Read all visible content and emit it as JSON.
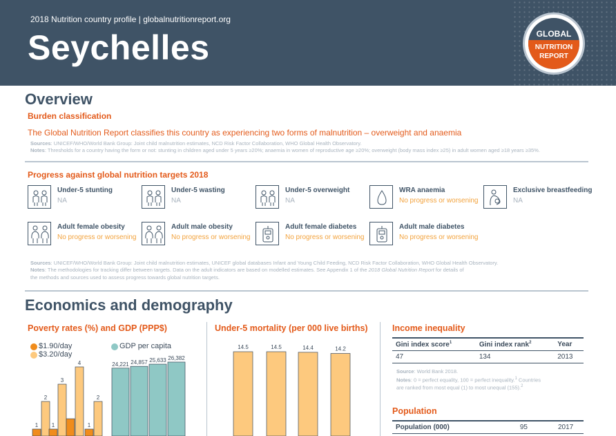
{
  "header": {
    "profile_line": "2018 Nutrition country profile  |  globalnutritionreport.org",
    "country": "Seychelles",
    "logo": {
      "line1": "GLOBAL",
      "line2": "NUTRITION",
      "line3": "REPORT"
    }
  },
  "overview": {
    "title": "Overview",
    "burden_title": "Burden classification",
    "burden_text": "The Global Nutrition Report classifies this country as experiencing two forms of malnutrition – overweight and anaemia",
    "sources_label": "Sources",
    "sources_text": ": UNICEF/WHO/World Bank Group: Joint child malnutrition estimates, NCD Risk Factor Collaboration, WHO Global Health Observatory.",
    "notes_label": "Notes",
    "notes_text": ": Thresholds for a country having the form or not: stunting in children aged under 5 years ≥20%; anaemia in women of reproductive age ≥20%; overweight (body mass index ≥25) in adult women aged ≥18 years ≥35%."
  },
  "progress": {
    "title": "Progress against global nutrition targets 2018",
    "targets": [
      {
        "name": "Under-5 stunting",
        "status": "NA",
        "icon": "children-icon"
      },
      {
        "name": "Under-5 wasting",
        "status": "NA",
        "icon": "children-icon"
      },
      {
        "name": "Under-5 overweight",
        "status": "NA",
        "icon": "children-icon"
      },
      {
        "name": "WRA anaemia",
        "status": "No progress or worsening",
        "icon": "blood-drop-icon"
      },
      {
        "name": "Exclusive breastfeeding",
        "status": "NA",
        "icon": "breastfeeding-icon"
      },
      {
        "name": "Adult female obesity",
        "status": "No progress or worsening",
        "icon": "adults-icon"
      },
      {
        "name": "Adult male obesity",
        "status": "No progress or worsening",
        "icon": "adults-icon"
      },
      {
        "name": "Adult female diabetes",
        "status": "No progress or worsening",
        "icon": "glucose-meter-icon"
      },
      {
        "name": "Adult male diabetes",
        "status": "No progress or worsening",
        "icon": "glucose-meter-icon"
      }
    ],
    "sources_label": "Sources",
    "sources_text": ": UNICEF/WHO/World Bank Group: Joint child malnutrition estimates, UNICEF global databases Infant and Young Child Feeding, NCD Risk Factor Collaboration, WHO Global Health Observatory.",
    "notes_label": "Notes",
    "notes_text_1": ": The methodologies for tracking differ between targets. Data on the adult indicators are based on modelled estimates. See Appendix 1 of the ",
    "notes_italic": "2018 Global Nutrition Report",
    "notes_text_2": " for details of",
    "notes_text_3": "the methods and sources used to assess progress towards global nutrition targets."
  },
  "economics": {
    "title": "Economics and demography",
    "poverty_title": "Poverty rates (%) and GDP (PPP$)",
    "mortality_title": "Under-5 mortality (per 000 live births)",
    "income_title": "Income inequality",
    "income_table": {
      "headers": [
        "Gini index score",
        "Gini index rank",
        "Year"
      ],
      "header_sups": [
        "1",
        "2",
        ""
      ],
      "row": [
        "47",
        "134",
        "2013"
      ]
    },
    "income_source_label": "Source",
    "income_source_text": ": World Bank 2018.",
    "income_notes_label": "Notes",
    "income_notes_text_1": ": 0 = perfect equality, 100 = perfect inequality.",
    "income_notes_sup_1": "1",
    "income_notes_text_1b": " Countries",
    "income_notes_text_2": "are ranked from most equal (1) to most unequal (155).",
    "income_notes_sup_2": "2",
    "population_title": "Population",
    "population_table": {
      "row": [
        "Population (000)",
        "95",
        "2017"
      ]
    }
  },
  "colors": {
    "header_bg": "#3f5366",
    "accent_orange": "#e35a1a",
    "light_orange": "#fdc97e",
    "dark_orange": "#f08c1c",
    "teal": "#8fc8c5"
  },
  "chart_data": [
    {
      "type": "bar",
      "title": "Poverty rates (%) and GDP (PPP$)",
      "series": [
        {
          "name": "$1.90/day",
          "values": [
            1,
            1,
            1,
            1
          ],
          "labels": [
            "1",
            "1",
            "",
            "1"
          ]
        },
        {
          "name": "$3.20/day",
          "values": [
            2,
            3,
            4,
            2
          ],
          "labels": [
            "2",
            "3",
            "4",
            "2"
          ]
        },
        {
          "name": "GDP per capita",
          "values": [
            24221,
            24857,
            25633,
            26382
          ],
          "labels": [
            "24,221",
            "24,857",
            "25,633",
            "26,382"
          ]
        }
      ],
      "legend": [
        "$1.90/day",
        "$3.20/day",
        "GDP per capita"
      ]
    },
    {
      "type": "bar",
      "title": "Under-5 mortality (per 000 live births)",
      "values": [
        14.5,
        14.5,
        14.4,
        14.2
      ],
      "labels": [
        "14.5",
        "14.5",
        "14.4",
        "14.2"
      ]
    }
  ]
}
